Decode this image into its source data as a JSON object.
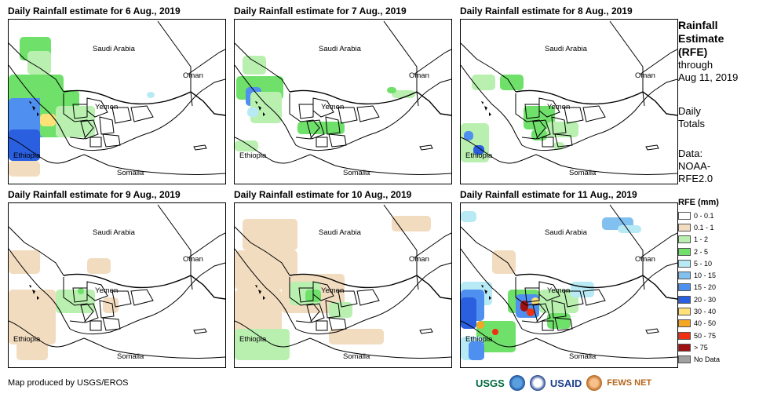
{
  "panels": [
    {
      "title": "Daily Rainfall estimate for 6 Aug., 2019"
    },
    {
      "title": "Daily Rainfall estimate for 7 Aug., 2019"
    },
    {
      "title": "Daily Rainfall estimate for 8 Aug., 2019"
    },
    {
      "title": "Daily Rainfall estimate for 9 Aug., 2019"
    },
    {
      "title": "Daily Rainfall estimate for 10 Aug., 2019"
    },
    {
      "title": "Daily Rainfall estimate for 11 Aug., 2019"
    }
  ],
  "map_labels": {
    "saudi": "Saudi Arabia",
    "oman": "Oman",
    "yemen": "Yemen",
    "ethiopia": "Ethiopia",
    "somalia": "Somalia"
  },
  "sidebar": {
    "title_line1": "Rainfall",
    "title_line2": "Estimate",
    "title_line3": "(RFE)",
    "through": "through",
    "date": "Aug 11, 2019",
    "daily1": "Daily",
    "daily2": "Totals",
    "data1": "Data:",
    "data2": "NOAA-",
    "data3": "RFE2.0"
  },
  "legend": {
    "title": "RFE (mm)",
    "items": [
      {
        "label": "0 - 0.1",
        "color": "#ffffff"
      },
      {
        "label": "0.1 - 1",
        "color": "#f2dcc0"
      },
      {
        "label": "1 - 2",
        "color": "#b9f0b0"
      },
      {
        "label": "2 - 5",
        "color": "#6fe06a"
      },
      {
        "label": "5 - 10",
        "color": "#b8eaf6"
      },
      {
        "label": "10 - 15",
        "color": "#82c0f0"
      },
      {
        "label": "15 - 20",
        "color": "#4f8ff0"
      },
      {
        "label": "20 - 30",
        "color": "#2a5fe0"
      },
      {
        "label": "30 - 40",
        "color": "#ffe17a"
      },
      {
        "label": "40 - 50",
        "color": "#f5a623"
      },
      {
        "label": "50 - 75",
        "color": "#f03010"
      },
      {
        "label": "> 75",
        "color": "#a01010"
      },
      {
        "label": "No Data",
        "color": "#a0a0a0"
      }
    ]
  },
  "credit": "Map produced by USGS/EROS",
  "logos": {
    "usgs": "USGS",
    "usaid": "USAID",
    "fews": "FEWS NET"
  }
}
